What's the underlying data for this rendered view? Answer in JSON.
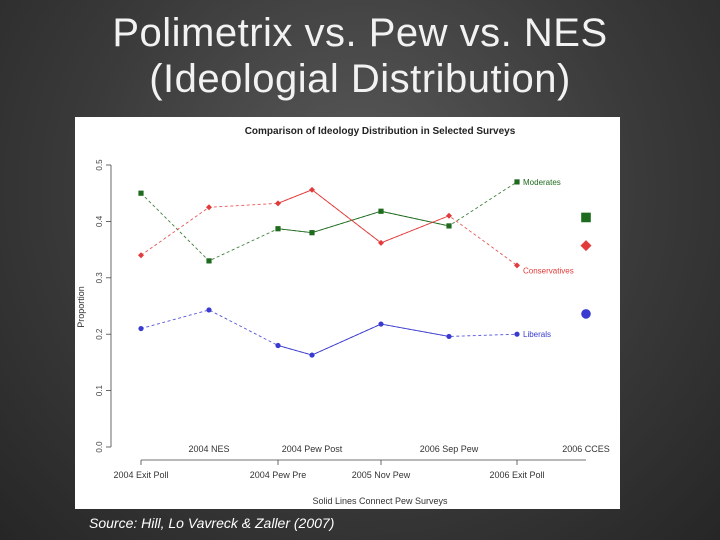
{
  "slide": {
    "title_line1": "Polimetrix vs. Pew vs. NES",
    "title_line2": "(Ideologial Distribution)",
    "source": "Source: Hill, Lo Vavreck & Zaller (2007)"
  },
  "chart_data": {
    "type": "line",
    "title": "Comparison of Ideology Distribution in Selected Surveys",
    "ylabel": "Proportion",
    "xlabel": "Solid Lines Connect Pew Surveys",
    "ylim": [
      0.0,
      0.5
    ],
    "yticks": [
      "0.0",
      "0.1",
      "0.2",
      "0.3",
      "0.4",
      "0.5"
    ],
    "grid": false,
    "categories": [
      "2004 Exit Poll",
      "2004 NES",
      "2004 Pew Pre",
      "2004 Pew Post",
      "2005 Nov Pew",
      "2006 Sep Pew",
      "2006 Exit Poll",
      "2006 CCES"
    ],
    "bottom_labels": [
      "2004 Exit Poll",
      "2004 Pew Pre",
      "2005 Nov Pew",
      "2006 Exit Poll"
    ],
    "top_labels": [
      "2004 NES",
      "2004 Pew Post",
      "2006 Sep Pew",
      "2006 CCES"
    ],
    "series": [
      {
        "name": "Moderates",
        "color": "#1e6b1e",
        "marker": "square",
        "values": [
          0.45,
          0.33,
          0.387,
          0.38,
          0.418,
          0.392,
          0.47,
          0.407
        ]
      },
      {
        "name": "Conservatives",
        "color": "#e23b3b",
        "marker": "diamond",
        "values": [
          0.34,
          0.425,
          0.432,
          0.456,
          0.362,
          0.41,
          0.322,
          0.357
        ]
      },
      {
        "name": "Liberals",
        "color": "#3a3ad0",
        "marker": "circle",
        "values": [
          0.21,
          0.243,
          0.18,
          0.163,
          0.218,
          0.196,
          0.2,
          0.236
        ]
      }
    ],
    "pew_indices": [
      2,
      3,
      4,
      5
    ]
  }
}
